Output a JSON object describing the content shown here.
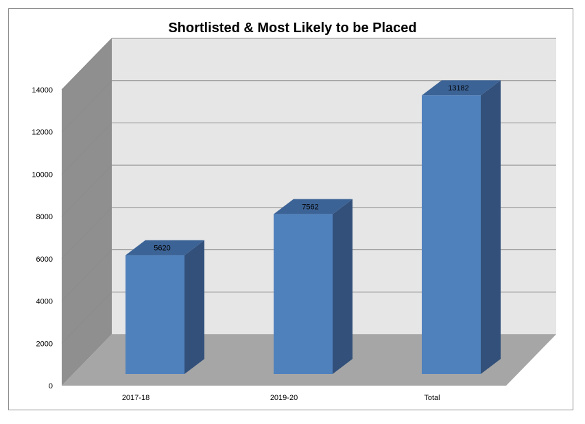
{
  "chart_data": {
    "type": "bar",
    "title": "Shortlisted & Most Likely to be Placed",
    "categories": [
      "2017-18",
      "2019-20",
      "Total"
    ],
    "values": [
      5620,
      7562,
      13182
    ],
    "ylim": [
      0,
      14000
    ],
    "yticks": [
      0,
      2000,
      4000,
      6000,
      8000,
      10000,
      12000,
      14000
    ],
    "yticks_labels": [
      "0",
      "2000",
      "4000",
      "6000",
      "8000",
      "10000",
      "12000",
      "14000"
    ],
    "data_labels": [
      "5620",
      "7562",
      "13182"
    ],
    "grid": true,
    "legend": "none",
    "colors": {
      "bar_front": "#4f81bd",
      "bar_side": "#32507a",
      "bar_top": "#3c6396",
      "back_wall": "#e6e6e6",
      "side_wall": "#8f8f8f",
      "floor": "#a6a6a6",
      "gridline": "#8c8c8c"
    }
  }
}
